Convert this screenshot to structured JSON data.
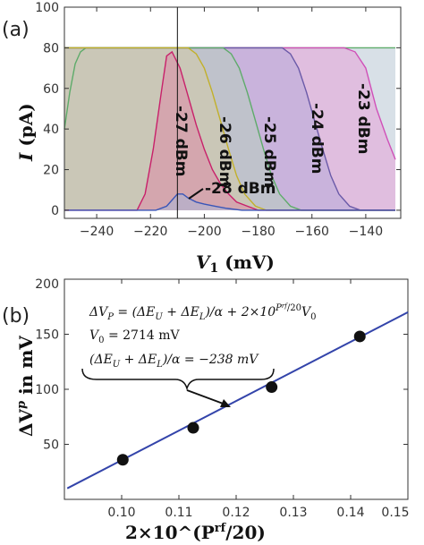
{
  "chart_data": [
    {
      "type": "area",
      "panel_label": "(a)",
      "xlabel": "V",
      "xlabel_sub": "1",
      "xlabel_unit": " (mV)",
      "ylabel": "I",
      "ylabel_unit": " (pA)",
      "xlim": [
        -252,
        -127
      ],
      "ylim": [
        -4,
        100
      ],
      "xticks": [
        -240,
        -220,
        -200,
        -180,
        -160,
        -140
      ],
      "yticks": [
        0,
        20,
        40,
        60,
        80,
        100
      ],
      "marker_line_x": -210,
      "grid": false,
      "series": [
        {
          "name": "-23 dBm",
          "color": "#d050b8",
          "fill": "#e7a2d9",
          "x": [
            -252,
            -148,
            -144,
            -140,
            -136,
            -132,
            -129
          ],
          "y": [
            80,
            80,
            78,
            70,
            50,
            35,
            25
          ]
        },
        {
          "name": "-24 dBm",
          "color": "#6a5aa8",
          "fill": "#b6a9d8",
          "x": [
            -252,
            -171,
            -168,
            -165,
            -162,
            -159,
            -156,
            -153,
            -150,
            -146,
            -142,
            -136,
            -129
          ],
          "y": [
            80,
            80,
            77,
            70,
            58,
            44,
            30,
            17,
            8,
            2,
            0,
            0,
            0
          ]
        },
        {
          "name": "-25 dBm",
          "color": "#5eab6a",
          "fill": "#b6cdbe",
          "x": [
            -252,
            -193,
            -190,
            -187,
            -184,
            -181,
            -178,
            -175,
            -172,
            -168,
            -164,
            -158,
            -129
          ],
          "y": [
            80,
            80,
            77,
            70,
            58,
            44,
            30,
            17,
            8,
            2,
            0,
            0,
            0
          ]
        },
        {
          "name": "-26 dBm",
          "color": "#c2b02a",
          "fill": "#d4cca8",
          "x": [
            -252,
            -206,
            -203,
            -200,
            -197,
            -194,
            -191,
            -188,
            -185,
            -181,
            -177,
            -171,
            -129
          ],
          "y": [
            80,
            80,
            77,
            70,
            58,
            44,
            30,
            17,
            8,
            2,
            0,
            0,
            0
          ]
        },
        {
          "name": "-27 dBm",
          "color": "#c8206a",
          "fill": "#dc8aa8",
          "x": [
            -252,
            -225,
            -222,
            -219,
            -216,
            -214,
            -212,
            -209,
            -206,
            -203,
            -200,
            -197,
            -194,
            -191,
            -188,
            -184,
            -180,
            -174,
            -129
          ],
          "y": [
            0,
            0,
            8,
            30,
            58,
            76,
            78,
            70,
            56,
            42,
            30,
            20,
            13,
            8,
            4,
            2,
            0,
            0,
            0
          ]
        },
        {
          "name": "-28 dBm",
          "color": "#3a56b8",
          "fill": "#a8b4d8",
          "x": [
            -252,
            -218,
            -214,
            -212,
            -210,
            -208,
            -206,
            -203,
            -200,
            -196,
            -192,
            -186,
            -129
          ],
          "y": [
            0,
            0,
            2,
            5,
            8,
            8,
            6,
            4,
            3,
            2,
            1,
            0,
            0
          ]
        }
      ],
      "outer_curve": {
        "color": "#5eab6a",
        "fill": "#b8c6d4",
        "x": [
          -252,
          -250,
          -248,
          -246,
          -244,
          -241,
          -238,
          -234,
          -231,
          -129
        ],
        "y": [
          40,
          58,
          72,
          78,
          80,
          80,
          80,
          80,
          80,
          80
        ]
      }
    },
    {
      "type": "scatter",
      "panel_label": "(b)",
      "xlabel": "2×10^(P",
      "xlabel_sup": "rf",
      "xlabel_tail": "/20)",
      "ylabel": "ΔV",
      "ylabel_sup": "p",
      "ylabel_unit": " in mV",
      "xlim": [
        0.09,
        0.15
      ],
      "ylim": [
        0,
        200
      ],
      "xticks": [
        0.1,
        0.11,
        0.12,
        0.13,
        0.14,
        0.15
      ],
      "xtick_labels": [
        "0.10",
        "0.11",
        "0.12",
        "0.13",
        "0.14",
        "0.15"
      ],
      "yticks": [
        50,
        100,
        150,
        200
      ],
      "points": {
        "x": [
          0.1002,
          0.1125,
          0.1262,
          0.1416
        ],
        "y": [
          36,
          65,
          102,
          148
        ]
      },
      "fit_line": {
        "x": [
          0.0905,
          0.15
        ],
        "y": [
          10,
          170
        ]
      },
      "equation": {
        "line1": "ΔV",
        "line1_sub": "P",
        "line1_mid": " = (ΔE",
        "line1_sub2": "U",
        "line1_mid2": " + ΔE",
        "line1_sub3": "L",
        "line1_mid3": ")/α + 2×10",
        "line1_sup": "P",
        "line1_sup_sup": "rf",
        "line1_sup_tail": "/20",
        "line1_end": "V",
        "line1_end_sub": "0",
        "line2": "V",
        "line2_sub": "0",
        "line2_tail": " = 2714 mV",
        "line3": "(ΔE",
        "line3_sub": "U",
        "line3_mid": " + ΔE",
        "line3_sub2": "L",
        "line3_tail": ")/α = −238 mV"
      }
    }
  ],
  "colors": {
    "line": "#3344aa",
    "point": "#111111",
    "axis": "#333333"
  }
}
